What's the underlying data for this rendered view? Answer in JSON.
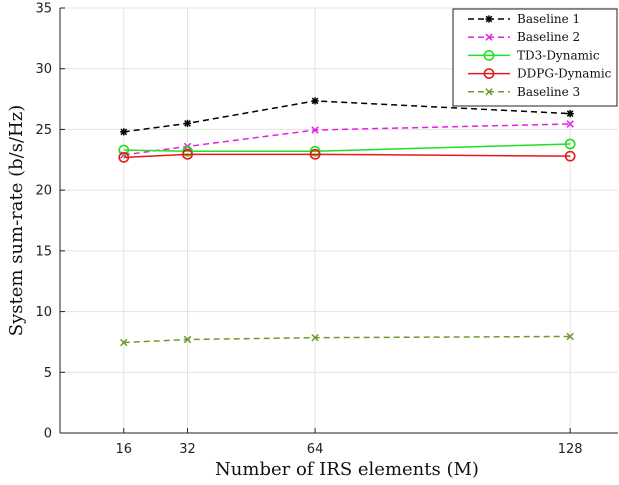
{
  "chart_data": {
    "type": "line",
    "title": "",
    "xlabel": "Number of IRS elements (M)",
    "ylabel": "System sum-rate (b/s/Hz)",
    "x": [
      16,
      32,
      64,
      128
    ],
    "x_ticks": [
      "16",
      "32",
      "64",
      "128"
    ],
    "xlim": [
      0,
      140
    ],
    "ylim": [
      0,
      35
    ],
    "y_ticks": [
      "0",
      "5",
      "10",
      "15",
      "20",
      "25",
      "30",
      "35"
    ],
    "grid": true,
    "legend_position": "top-right",
    "series": [
      {
        "name": "Baseline 1",
        "values": [
          24.8,
          25.5,
          27.35,
          26.3
        ],
        "color": "#000000",
        "dash": "dashed",
        "marker": "star"
      },
      {
        "name": "Baseline 2",
        "values": [
          22.9,
          23.6,
          24.95,
          25.45
        ],
        "color": "#e61ee6",
        "dash": "dashed",
        "marker": "x"
      },
      {
        "name": "TD3-Dynamic",
        "values": [
          23.3,
          23.2,
          23.2,
          23.8
        ],
        "color": "#22e022",
        "dash": "solid",
        "marker": "circle"
      },
      {
        "name": "DDPG-Dynamic",
        "values": [
          22.7,
          22.95,
          22.95,
          22.8
        ],
        "color": "#e81818",
        "dash": "solid",
        "marker": "circle"
      },
      {
        "name": "Baseline 3",
        "values": [
          7.45,
          7.7,
          7.85,
          7.95
        ],
        "color": "#6f9a2a",
        "dash": "dashed",
        "marker": "x"
      }
    ]
  }
}
